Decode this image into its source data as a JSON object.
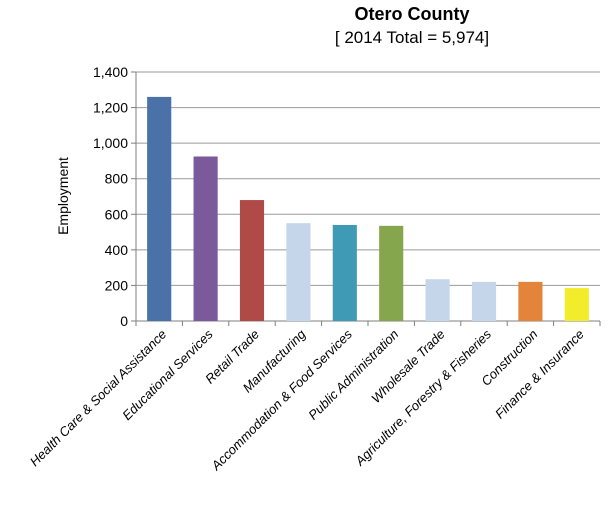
{
  "chart_data": {
    "type": "bar",
    "title": "Otero County",
    "subtitle": "[ 2014 Total = 5,974]",
    "xlabel": "",
    "ylabel": "Employment",
    "ylim": [
      0,
      1400
    ],
    "yticks": [
      "0",
      "200",
      "400",
      "600",
      "800",
      "1,000",
      "1,200",
      "1,400"
    ],
    "grid": true,
    "categories": [
      "Health Care & Social Assistance",
      "Educational Services",
      "Retail Trade",
      "Manufacturing",
      "Accommodation & Food Services",
      "Public Administration",
      "Wholesale Trade",
      "Agriculture, Forestry & Fisheries",
      "Construction",
      "Finance & Insurance"
    ],
    "values": [
      1260,
      925,
      680,
      550,
      540,
      535,
      235,
      220,
      220,
      185
    ],
    "colors": [
      "#4a72a8",
      "#7a5a9a",
      "#b04a46",
      "#c5d6ea",
      "#3f9bb5",
      "#86a64e",
      "#c5d6ea",
      "#c5d6ea",
      "#e3843a",
      "#f2ec2a"
    ]
  }
}
